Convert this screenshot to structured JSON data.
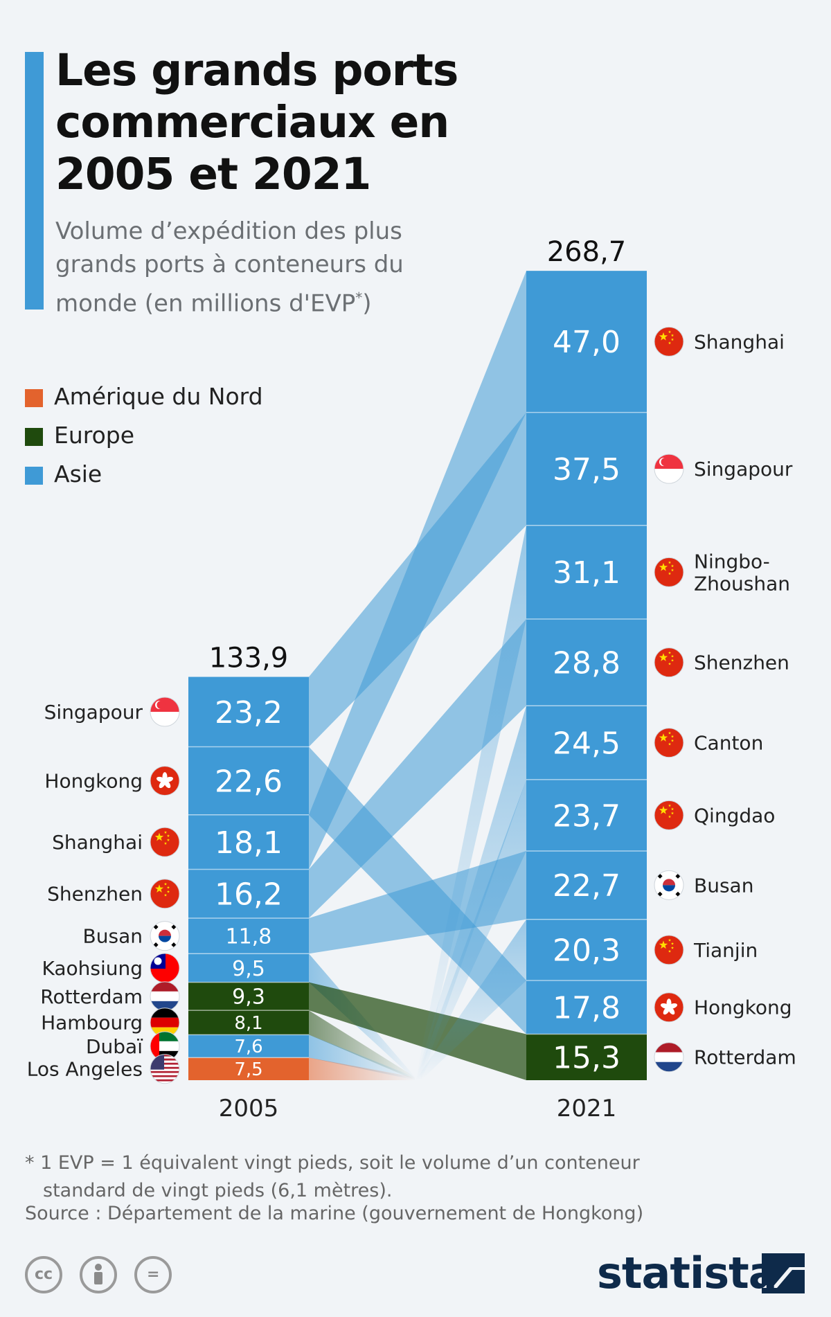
{
  "header": {
    "title": "Les grands ports commerciaux en 2005 et 2021",
    "subtitle": "Volume d’expédition des plus grands ports à conteneurs du monde (en millions d'EVP",
    "subtitle_sup": "*",
    "subtitle_end": ")"
  },
  "legend": [
    {
      "label": "Amérique du Nord",
      "color": "#e3632d"
    },
    {
      "label": "Europe",
      "color": "#1f4a0d"
    },
    {
      "label": "Asie",
      "color": "#3f9ad6"
    }
  ],
  "chart_data": {
    "type": "bar",
    "stacked": true,
    "columns": [
      {
        "year": "2005",
        "total": "133,9",
        "segments": [
          {
            "port": "Singapour",
            "value": 23.2,
            "label": "23,2",
            "region": "Asie",
            "flag": "singapore-flag"
          },
          {
            "port": "Hongkong",
            "value": 22.6,
            "label": "22,6",
            "region": "Asie",
            "flag": "hongkong-flag"
          },
          {
            "port": "Shanghai",
            "value": 18.1,
            "label": "18,1",
            "region": "Asie",
            "flag": "china-flag"
          },
          {
            "port": "Shenzhen",
            "value": 16.2,
            "label": "16,2",
            "region": "Asie",
            "flag": "china-flag"
          },
          {
            "port": "Busan",
            "value": 11.8,
            "label": "11,8",
            "region": "Asie",
            "flag": "south-korea-flag"
          },
          {
            "port": "Kaohsiung",
            "value": 9.5,
            "label": "9,5",
            "region": "Asie",
            "flag": "taiwan-flag"
          },
          {
            "port": "Rotterdam",
            "value": 9.3,
            "label": "9,3",
            "region": "Europe",
            "flag": "netherlands-flag"
          },
          {
            "port": "Hambourg",
            "value": 8.1,
            "label": "8,1",
            "region": "Europe",
            "flag": "germany-flag"
          },
          {
            "port": "Dubaï",
            "value": 7.6,
            "label": "7,6",
            "region": "Asie",
            "flag": "uae-flag"
          },
          {
            "port": "Los Angeles",
            "value": 7.5,
            "label": "7,5",
            "region": "Amérique du Nord",
            "flag": "usa-flag"
          }
        ]
      },
      {
        "year": "2021",
        "total": "268,7",
        "segments": [
          {
            "port": "Shanghai",
            "value": 47.0,
            "label": "47,0",
            "region": "Asie",
            "flag": "china-flag"
          },
          {
            "port": "Singapour",
            "value": 37.5,
            "label": "37,5",
            "region": "Asie",
            "flag": "singapore-flag"
          },
          {
            "port": "Ningbo-Zhoushan",
            "value": 31.1,
            "label": "31,1",
            "region": "Asie",
            "flag": "china-flag",
            "display_lines": [
              "Ningbo-",
              "Zhoushan"
            ]
          },
          {
            "port": "Shenzhen",
            "value": 28.8,
            "label": "28,8",
            "region": "Asie",
            "flag": "china-flag"
          },
          {
            "port": "Canton",
            "value": 24.5,
            "label": "24,5",
            "region": "Asie",
            "flag": "china-flag"
          },
          {
            "port": "Qingdao",
            "value": 23.7,
            "label": "23,7",
            "region": "Asie",
            "flag": "china-flag"
          },
          {
            "port": "Busan",
            "value": 22.7,
            "label": "22,7",
            "region": "Asie",
            "flag": "south-korea-flag"
          },
          {
            "port": "Tianjin",
            "value": 20.3,
            "label": "20,3",
            "region": "Asie",
            "flag": "china-flag"
          },
          {
            "port": "Hongkong",
            "value": 17.8,
            "label": "17,8",
            "region": "Asie",
            "flag": "hongkong-flag"
          },
          {
            "port": "Rotterdam",
            "value": 15.3,
            "label": "15,3",
            "region": "Europe",
            "flag": "netherlands-flag"
          }
        ]
      }
    ]
  },
  "footnote": {
    "line1": "* 1 EVP = 1 équivalent vingt pieds, soit le volume d’un conteneur",
    "line2": "standard de vingt pieds (6,1 mètres)."
  },
  "source": "Source : Département de la marine (gouvernement de Hongkong)",
  "license": {
    "cc": "cc",
    "eq": "="
  },
  "logo": "statista"
}
